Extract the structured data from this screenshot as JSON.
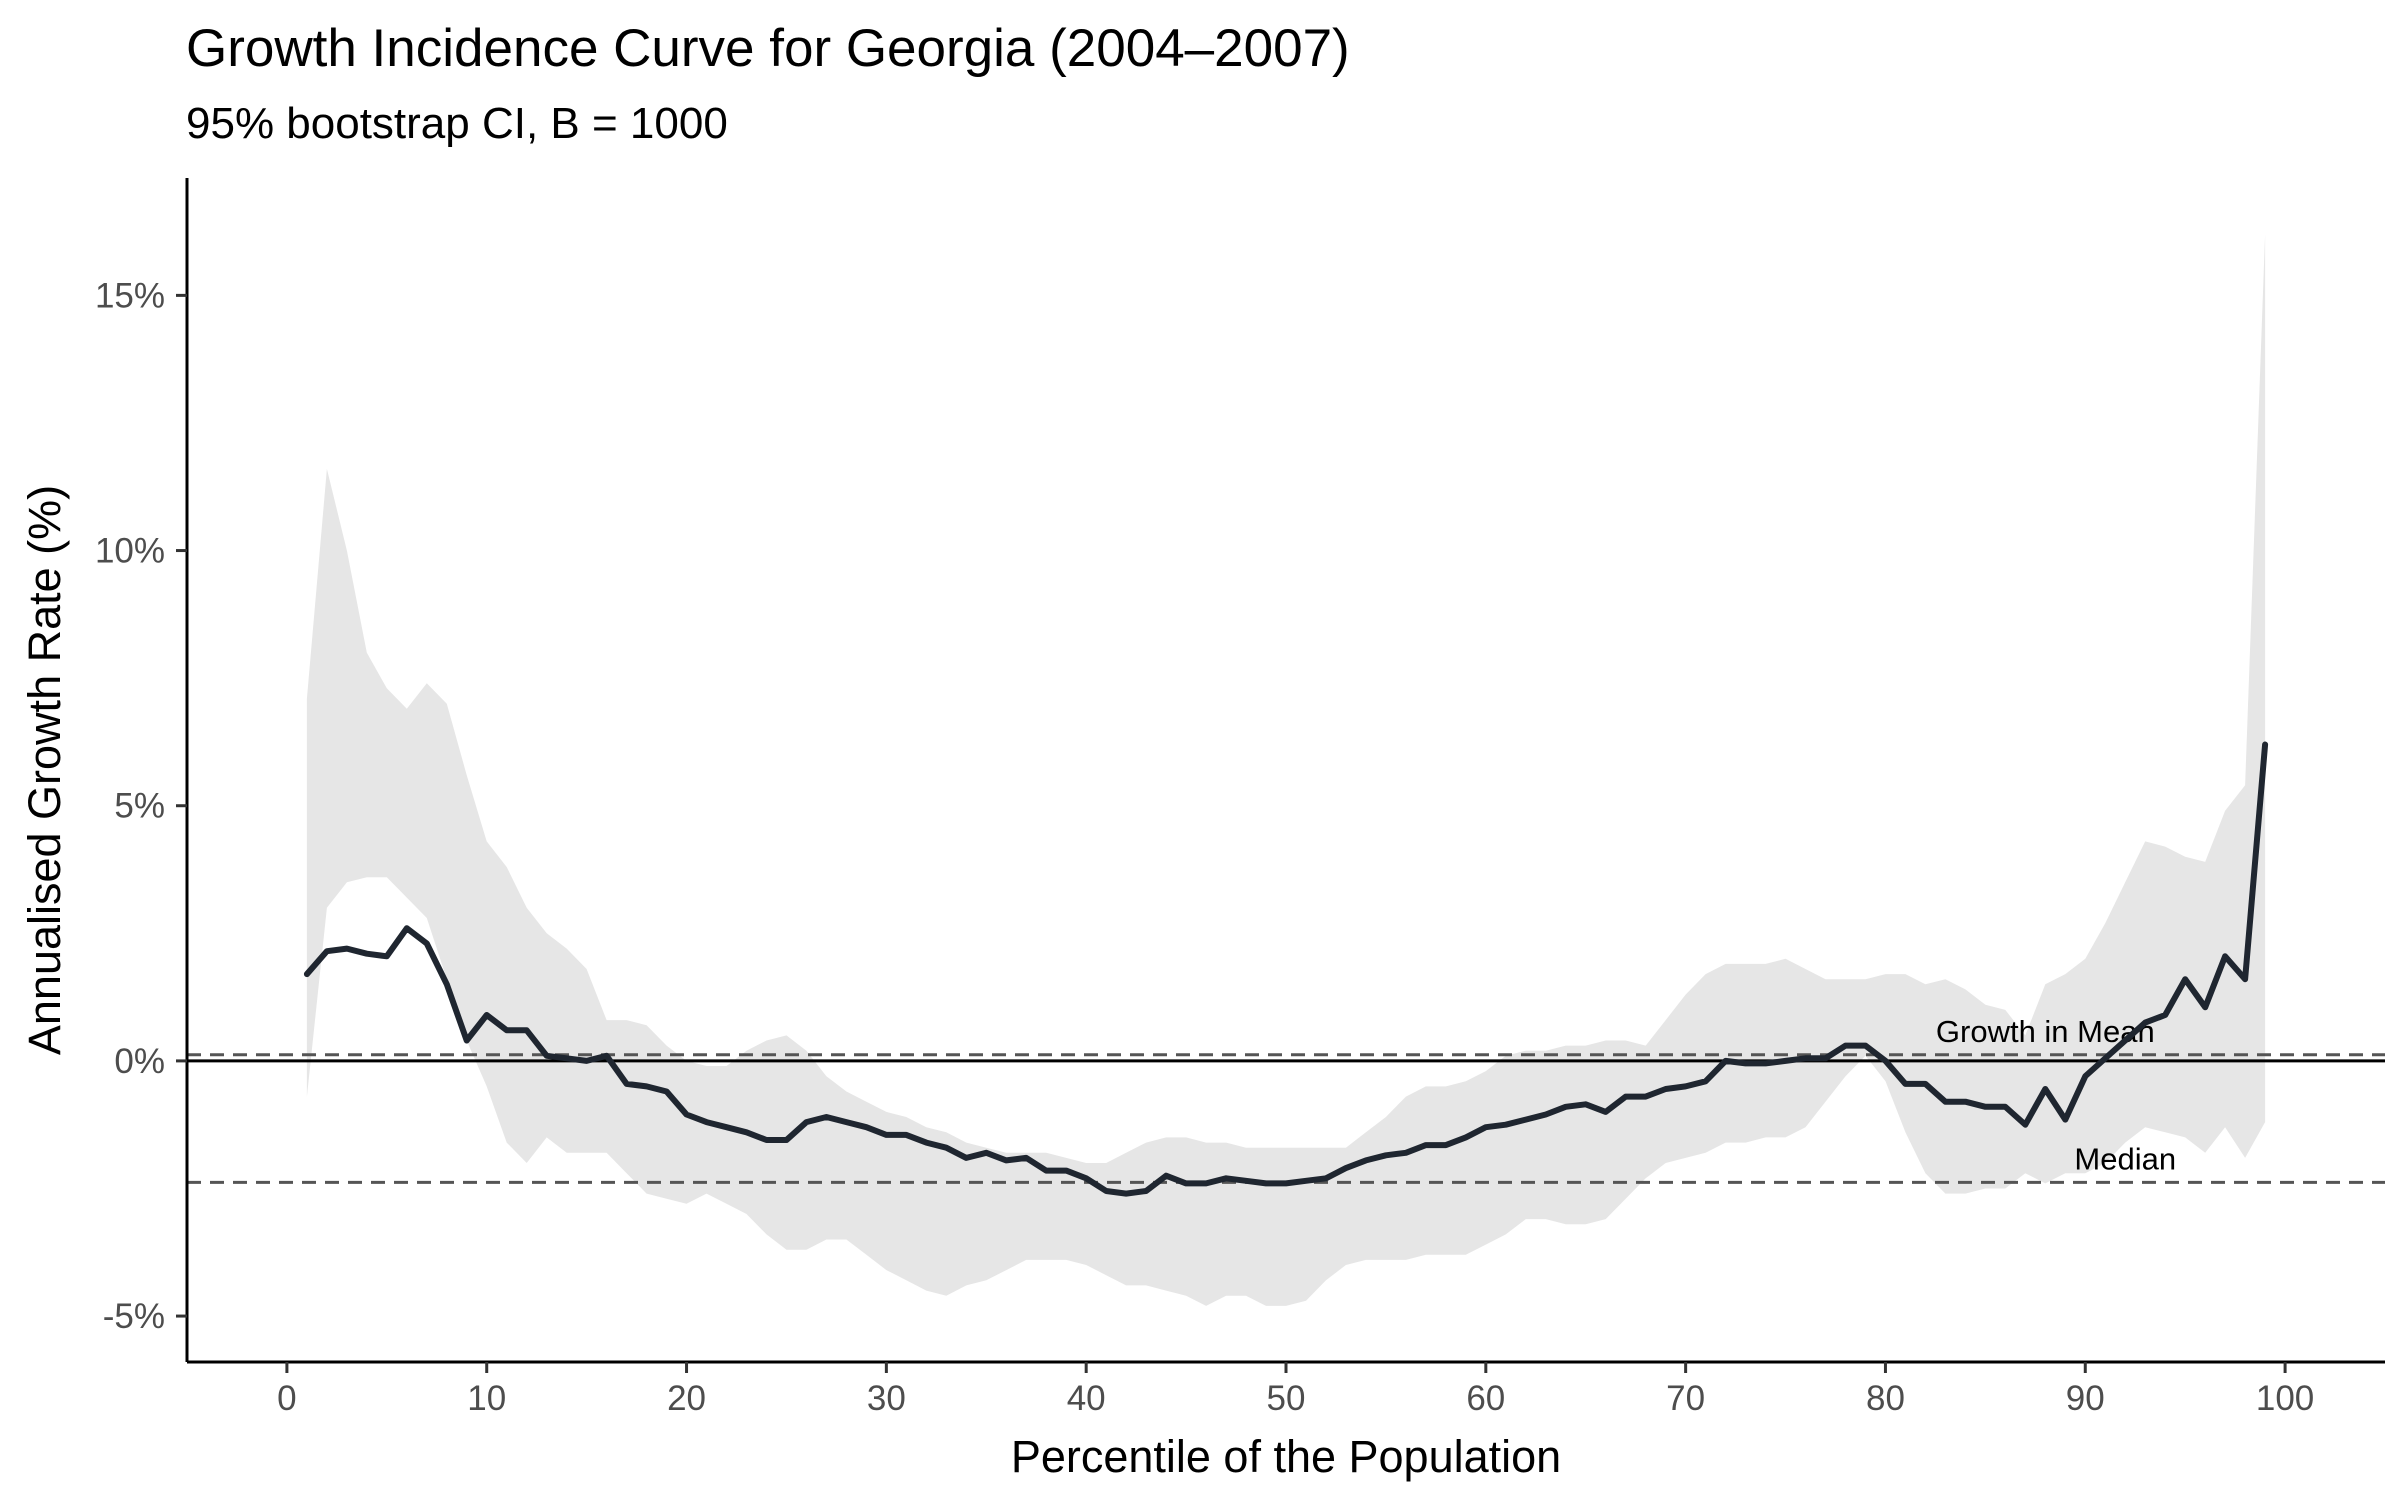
{
  "chart_data": {
    "type": "line",
    "title": "Growth Incidence Curve for Georgia (2004–2007)",
    "subtitle": "95% bootstrap CI, B = 1000",
    "xlabel": "Percentile of the Population",
    "ylabel": "Annualised Growth Rate (%)",
    "xlim": [
      -5,
      105
    ],
    "ylim": [
      -5.9,
      17.3
    ],
    "x_ticks": [
      0,
      10,
      20,
      30,
      40,
      50,
      60,
      70,
      80,
      90,
      100
    ],
    "x_tick_labels": [
      "0",
      "10",
      "20",
      "30",
      "40",
      "50",
      "60",
      "70",
      "80",
      "90",
      "100"
    ],
    "y_ticks": [
      -5,
      0,
      5,
      10,
      15
    ],
    "y_tick_labels": [
      "-5%",
      "0%",
      "5%",
      "10%",
      "15%"
    ],
    "grid": false,
    "legend": "none",
    "colors": {
      "line": "#1f2630",
      "band": "#e6e6e6",
      "reference": "#555555",
      "zero": "#000000"
    },
    "reference_lines": [
      {
        "label": "Growth in Mean",
        "y": 0.12,
        "label_x": 88
      },
      {
        "label": "Median",
        "y": -2.38,
        "label_x": 92
      }
    ],
    "zero_line": 0,
    "series": [
      {
        "x": [
          1,
          2,
          3,
          4,
          5,
          6,
          7,
          8,
          9,
          10,
          11,
          12,
          13,
          14,
          15,
          16,
          17,
          18,
          19,
          20,
          21,
          22,
          23,
          24,
          25,
          26,
          27,
          28,
          29,
          30,
          31,
          32,
          33,
          34,
          35,
          36,
          37,
          38,
          39,
          40,
          41,
          42,
          43,
          44,
          45,
          46,
          47,
          48,
          49,
          50,
          51,
          52,
          53,
          54,
          55,
          56,
          57,
          58,
          59,
          60,
          61,
          62,
          63,
          64,
          65,
          66,
          67,
          68,
          69,
          70,
          71,
          72,
          73,
          74,
          75,
          76,
          77,
          78,
          79,
          80,
          81,
          82,
          83,
          84,
          85,
          86,
          87,
          88,
          89,
          90,
          91,
          92,
          93,
          94,
          95,
          96,
          97,
          98,
          99
        ],
        "values": [
          1.7,
          2.15,
          2.2,
          2.1,
          2.05,
          2.6,
          2.3,
          1.5,
          0.4,
          0.9,
          0.6,
          0.6,
          0.1,
          0.05,
          0.0,
          0.1,
          -0.45,
          -0.5,
          -0.6,
          -1.05,
          -1.2,
          -1.3,
          -1.4,
          -1.55,
          -1.55,
          -1.2,
          -1.1,
          -1.2,
          -1.3,
          -1.45,
          -1.45,
          -1.6,
          -1.7,
          -1.9,
          -1.8,
          -1.95,
          -1.9,
          -2.15,
          -2.15,
          -2.3,
          -2.55,
          -2.6,
          -2.55,
          -2.25,
          -2.4,
          -2.4,
          -2.3,
          -2.35,
          -2.4,
          -2.4,
          -2.35,
          -2.3,
          -2.1,
          -1.95,
          -1.85,
          -1.8,
          -1.65,
          -1.65,
          -1.5,
          -1.3,
          -1.25,
          -1.15,
          -1.05,
          -0.9,
          -0.85,
          -1.0,
          -0.7,
          -0.7,
          -0.55,
          -0.5,
          -0.4,
          0.0,
          -0.05,
          -0.05,
          0.0,
          0.05,
          0.05,
          0.3,
          0.3,
          0.0,
          -0.45,
          -0.45,
          -0.8,
          -0.8,
          -0.9,
          -0.9,
          -1.25,
          -0.55,
          -1.15,
          -0.3,
          0.05,
          0.4,
          0.75,
          0.9,
          1.6,
          1.05,
          2.05,
          1.6,
          6.2
        ],
        "ci_lower": [
          -0.7,
          3.0,
          3.5,
          3.6,
          3.6,
          3.2,
          2.8,
          1.6,
          0.4,
          -0.5,
          -1.6,
          -2.0,
          -1.5,
          -1.8,
          -1.8,
          -1.8,
          -2.2,
          -2.6,
          -2.7,
          -2.8,
          -2.6,
          -2.8,
          -3.0,
          -3.4,
          -3.7,
          -3.7,
          -3.5,
          -3.5,
          -3.8,
          -4.1,
          -4.3,
          -4.5,
          -4.6,
          -4.4,
          -4.3,
          -4.1,
          -3.9,
          -3.9,
          -3.9,
          -4.0,
          -4.2,
          -4.4,
          -4.4,
          -4.5,
          -4.6,
          -4.8,
          -4.6,
          -4.6,
          -4.8,
          -4.8,
          -4.7,
          -4.3,
          -4.0,
          -3.9,
          -3.9,
          -3.9,
          -3.8,
          -3.8,
          -3.8,
          -3.6,
          -3.4,
          -3.1,
          -3.1,
          -3.2,
          -3.2,
          -3.1,
          -2.7,
          -2.3,
          -2.0,
          -1.9,
          -1.8,
          -1.6,
          -1.6,
          -1.5,
          -1.5,
          -1.3,
          -0.8,
          -0.3,
          0.1,
          -0.4,
          -1.4,
          -2.2,
          -2.6,
          -2.6,
          -2.5,
          -2.5,
          -2.2,
          -2.4,
          -2.2,
          -2.2,
          -2.0,
          -1.6,
          -1.3,
          -1.4,
          -1.5,
          -1.8,
          -1.3,
          -1.9,
          -1.2
        ],
        "ci_upper": [
          7.1,
          11.6,
          10.0,
          8.0,
          7.3,
          6.9,
          7.4,
          7.0,
          5.6,
          4.3,
          3.8,
          3.0,
          2.5,
          2.2,
          1.8,
          0.8,
          0.8,
          0.7,
          0.3,
          0.0,
          -0.1,
          -0.1,
          0.2,
          0.4,
          0.5,
          0.2,
          -0.3,
          -0.6,
          -0.8,
          -1.0,
          -1.1,
          -1.3,
          -1.4,
          -1.6,
          -1.7,
          -1.8,
          -1.8,
          -1.8,
          -1.9,
          -2.0,
          -2.0,
          -1.8,
          -1.6,
          -1.5,
          -1.5,
          -1.6,
          -1.6,
          -1.7,
          -1.7,
          -1.7,
          -1.7,
          -1.7,
          -1.7,
          -1.4,
          -1.1,
          -0.7,
          -0.5,
          -0.5,
          -0.4,
          -0.2,
          0.1,
          0.2,
          0.2,
          0.3,
          0.3,
          0.4,
          0.4,
          0.3,
          0.8,
          1.3,
          1.7,
          1.9,
          1.9,
          1.9,
          2.0,
          1.8,
          1.6,
          1.6,
          1.6,
          1.7,
          1.7,
          1.5,
          1.6,
          1.4,
          1.1,
          1.0,
          0.5,
          1.5,
          1.7,
          2.0,
          2.7,
          3.5,
          4.3,
          4.2,
          4.0,
          3.9,
          4.9,
          5.4,
          16.2
        ]
      }
    ]
  }
}
